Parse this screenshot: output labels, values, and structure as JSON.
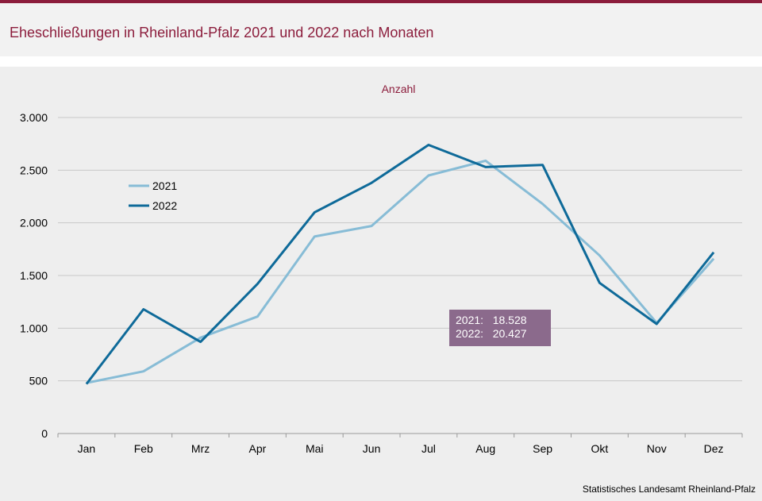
{
  "header": {
    "title": "Eheschließungen in Rheinland-Pfalz 2021 und 2022 nach Monaten"
  },
  "source": "Statistisches Landesamt  Rheinland-Pfalz",
  "tooltip": {
    "line1": "2021:   18.528",
    "line2": "2022:   20.427"
  },
  "chart_data": {
    "type": "line",
    "title": "",
    "ylabel": "Anzahl",
    "xlabel": "",
    "categories": [
      "Jan",
      "Feb",
      "Mrz",
      "Apr",
      "Mai",
      "Jun",
      "Jul",
      "Aug",
      "Sep",
      "Okt",
      "Nov",
      "Dez"
    ],
    "ylim": [
      0,
      3000
    ],
    "yticks": [
      0,
      500,
      1000,
      1500,
      2000,
      2500,
      3000
    ],
    "ytick_labels": [
      "0",
      "500",
      "1.000",
      "1.500",
      "2.000",
      "2.500",
      "3.000"
    ],
    "grid": true,
    "legend_position": "upper-left",
    "series": [
      {
        "name": "2021",
        "color": "#87bcd6",
        "values": [
          480,
          590,
          910,
          1110,
          1870,
          1970,
          2450,
          2590,
          2180,
          1690,
          1050,
          1660
        ]
      },
      {
        "name": "2022",
        "color": "#0e6a99",
        "values": [
          470,
          1180,
          870,
          1420,
          2100,
          2380,
          2740,
          2530,
          2550,
          1430,
          1040,
          1720
        ]
      }
    ]
  }
}
